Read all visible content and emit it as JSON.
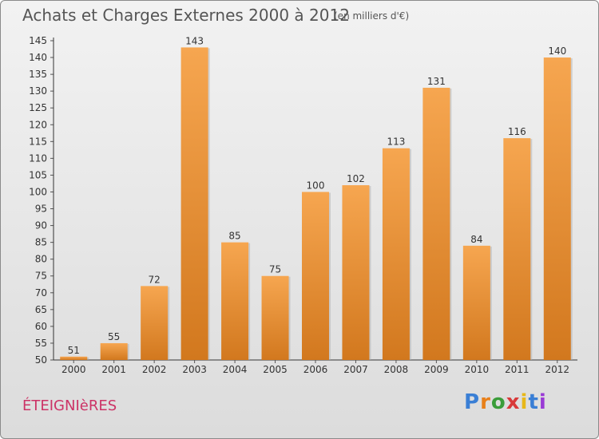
{
  "header": {
    "title": "Achats et Charges Externes 2000 à 2012",
    "unit": "(en milliers d'€)"
  },
  "footer": {
    "city": "ÉTEIGNIèRES",
    "logo_text": "Proxiti",
    "logo_colors": [
      "#3a7fd5",
      "#e8801a",
      "#3a9d3a",
      "#d83a3a",
      "#e8b81a",
      "#3a7fd5",
      "#9a3ad5"
    ]
  },
  "colors": {
    "bar_light": "#f6a650",
    "bar_dark": "#d2781e",
    "axis": "#333333",
    "grid_tick": "#555555"
  },
  "chart_data": {
    "type": "bar",
    "title": "Achats et Charges Externes 2000 à 2012",
    "xlabel": "",
    "ylabel": "",
    "categories": [
      "2000",
      "2001",
      "2002",
      "2003",
      "2004",
      "2005",
      "2006",
      "2007",
      "2008",
      "2009",
      "2010",
      "2011",
      "2012"
    ],
    "values": [
      51,
      55,
      72,
      143,
      85,
      75,
      100,
      102,
      113,
      131,
      84,
      116,
      140
    ],
    "ylim": [
      50,
      145
    ],
    "yticks": [
      50,
      55,
      60,
      65,
      70,
      75,
      80,
      85,
      90,
      95,
      100,
      105,
      110,
      115,
      120,
      125,
      130,
      135,
      140,
      145
    ],
    "grid": false,
    "legend": "none"
  }
}
